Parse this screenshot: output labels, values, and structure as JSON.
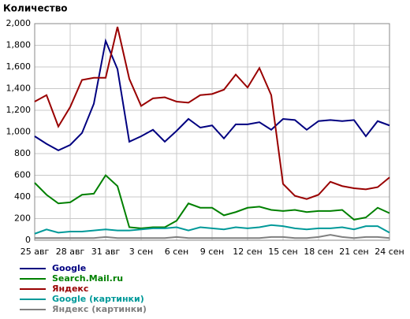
{
  "chart_data": {
    "type": "line",
    "title": "Количество",
    "categories": [
      "25 авг",
      null,
      null,
      "28 авг",
      null,
      null,
      "31 авг",
      null,
      null,
      "3 сен",
      null,
      null,
      "6 сен",
      null,
      null,
      "9 сен",
      null,
      null,
      "12 сен",
      null,
      null,
      "15 сен",
      null,
      null,
      "18 сен",
      null,
      null,
      "21 сен",
      null,
      null,
      "24 сен"
    ],
    "series": [
      {
        "name": "Google",
        "color": "#000080",
        "values": [
          960,
          890,
          830,
          880,
          990,
          1260,
          1840,
          1580,
          910,
          960,
          1020,
          910,
          1010,
          1120,
          1040,
          1060,
          940,
          1070,
          1070,
          1090,
          1020,
          1120,
          1110,
          1020,
          1100,
          1110,
          1100,
          1110,
          960,
          1100,
          1060
        ]
      },
      {
        "name": "Search.Mail.ru",
        "color": "#008000",
        "values": [
          530,
          420,
          340,
          350,
          420,
          430,
          600,
          500,
          120,
          110,
          120,
          120,
          180,
          340,
          300,
          300,
          230,
          260,
          300,
          310,
          280,
          270,
          280,
          260,
          270,
          270,
          280,
          190,
          210,
          300,
          250
        ]
      },
      {
        "name": "Яндекс",
        "color": "#990000",
        "values": [
          1280,
          1340,
          1050,
          1230,
          1480,
          1500,
          1500,
          1970,
          1490,
          1240,
          1310,
          1320,
          1280,
          1270,
          1340,
          1350,
          1390,
          1530,
          1410,
          1590,
          1340,
          520,
          410,
          380,
          420,
          540,
          500,
          480,
          470,
          490,
          580
        ]
      },
      {
        "name": "Google (картинки)",
        "color": "#009999",
        "values": [
          60,
          100,
          70,
          80,
          80,
          90,
          100,
          90,
          90,
          100,
          110,
          110,
          120,
          90,
          120,
          110,
          100,
          120,
          110,
          120,
          140,
          130,
          110,
          100,
          110,
          110,
          120,
          100,
          130,
          130,
          70
        ]
      },
      {
        "name": "Яндекс (картинки)",
        "color": "#808080",
        "values": [
          20,
          20,
          20,
          20,
          20,
          20,
          30,
          20,
          20,
          20,
          20,
          20,
          30,
          20,
          20,
          20,
          20,
          20,
          20,
          20,
          30,
          30,
          20,
          20,
          30,
          50,
          30,
          20,
          30,
          30,
          20
        ]
      }
    ],
    "ylim": [
      0,
      2000
    ],
    "yticks": [
      0,
      200,
      400,
      600,
      800,
      {
        "value": 1000,
        "label": "1,000"
      },
      {
        "value": 1200,
        "label": "1,200"
      },
      {
        "value": 1400,
        "label": "1,400"
      },
      {
        "value": 1600,
        "label": "1,600"
      },
      {
        "value": 1800,
        "label": "1,800"
      },
      {
        "value": 2000,
        "label": "2,000"
      }
    ],
    "grid": true
  }
}
